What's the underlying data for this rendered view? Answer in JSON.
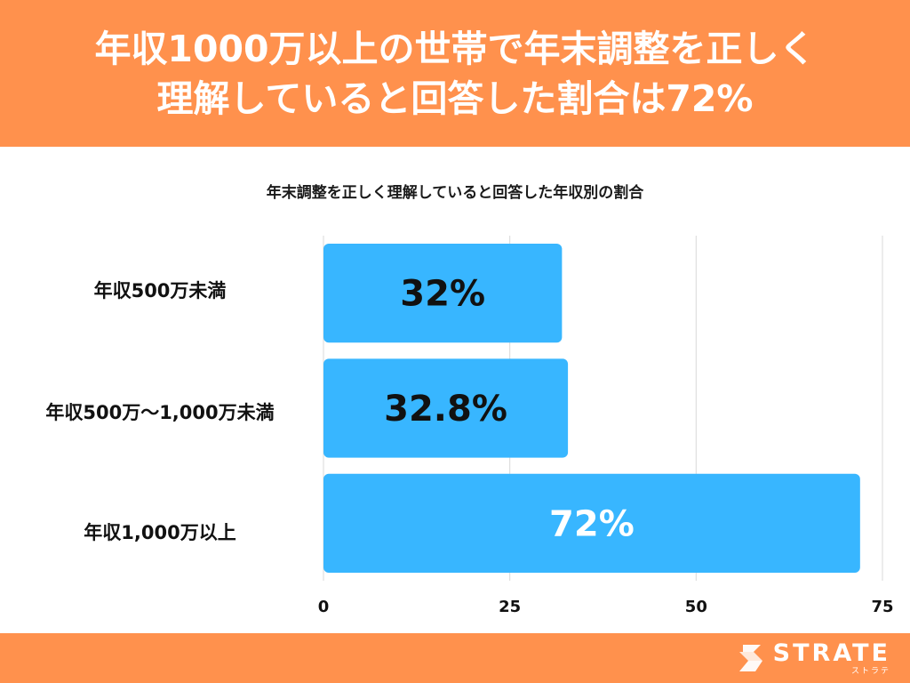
{
  "header": {
    "title_line1": "年収1000万以上の世帯で年末調整を正しく",
    "title_line2": "理解していると回答した割合は72%"
  },
  "chart_data": {
    "type": "bar",
    "orientation": "horizontal",
    "title": "年末調整を正しく理解していると回答した年収別の割合",
    "categories": [
      "年収500万未満",
      "年収500万〜1,000万未満",
      "年収1,000万以上"
    ],
    "values": [
      32,
      32.8,
      72
    ],
    "data_labels": [
      "32%",
      "32.8%",
      "72%"
    ],
    "xlim": [
      0,
      75
    ],
    "x_ticks": [
      "0",
      "25",
      "50",
      "75"
    ],
    "xlabel": "",
    "ylabel": "",
    "grid": true,
    "legend": "none"
  },
  "colors": {
    "header_bg": "#ff914d",
    "bar": "#38b6ff",
    "bar_label_dark": "#111111",
    "bar_label_light": "#ffffff",
    "grid": "#d9d9d9"
  },
  "footer": {
    "logo_text": "STRATE",
    "logo_sub": "ストラテ",
    "logo_icon": "strate-s-logo-icon"
  }
}
